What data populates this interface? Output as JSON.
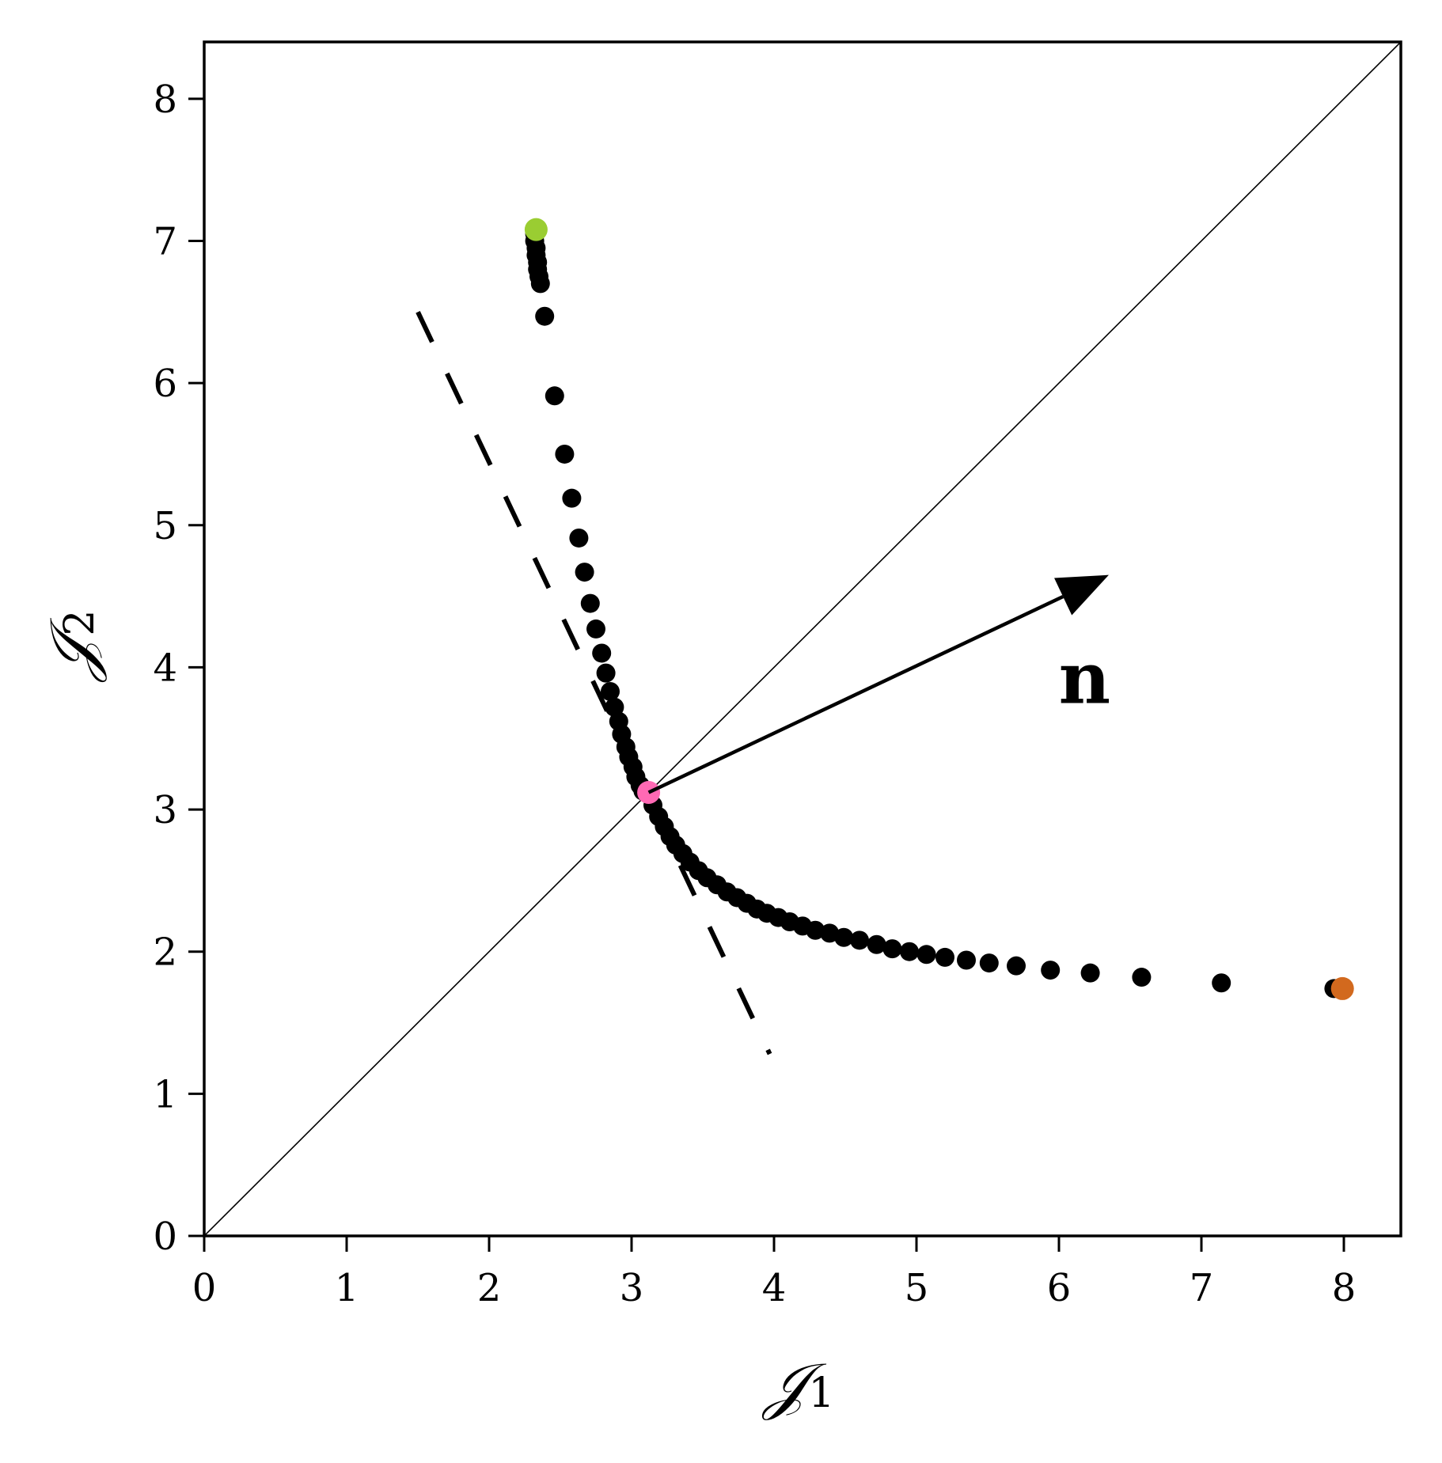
{
  "chart_data": {
    "type": "scatter",
    "title": "",
    "xlabel": {
      "main": "𝒥",
      "sub": "1"
    },
    "ylabel": {
      "main": "𝒥",
      "sub": "2"
    },
    "xlim": [
      0,
      8.4
    ],
    "ylim": [
      0,
      8.4
    ],
    "xticks": [
      "0",
      "1",
      "2",
      "3",
      "4",
      "5",
      "6",
      "7",
      "8"
    ],
    "yticks": [
      "0",
      "1",
      "2",
      "3",
      "4",
      "5",
      "6",
      "7",
      "8"
    ],
    "grid": false,
    "identity_line": {
      "from": [
        0,
        0
      ],
      "to": [
        8.4,
        8.4
      ]
    },
    "tangent_line": {
      "from": [
        1.5,
        6.5
      ],
      "to": [
        3.97,
        1.28
      ],
      "style": "dashed"
    },
    "normal_vector": {
      "from": [
        3.12,
        3.12
      ],
      "to": [
        6.35,
        4.65
      ],
      "label": "n"
    },
    "series": [
      {
        "color": "#000000",
        "points": [
          [
            2.32,
            7.05
          ],
          [
            2.32,
            7.0
          ],
          [
            2.33,
            6.95
          ],
          [
            2.33,
            6.9
          ],
          [
            2.34,
            6.85
          ],
          [
            2.34,
            6.8
          ],
          [
            2.35,
            6.75
          ],
          [
            2.36,
            6.7
          ],
          [
            2.39,
            6.47
          ],
          [
            2.46,
            5.91
          ],
          [
            2.53,
            5.5
          ],
          [
            2.58,
            5.19
          ],
          [
            2.63,
            4.91
          ],
          [
            2.67,
            4.67
          ],
          [
            2.71,
            4.45
          ],
          [
            2.75,
            4.27
          ],
          [
            2.79,
            4.1
          ],
          [
            2.82,
            3.96
          ],
          [
            2.85,
            3.83
          ],
          [
            2.88,
            3.72
          ],
          [
            2.91,
            3.62
          ],
          [
            2.93,
            3.53
          ],
          [
            2.96,
            3.44
          ],
          [
            2.98,
            3.37
          ],
          [
            3.01,
            3.3
          ],
          [
            3.03,
            3.23
          ],
          [
            3.06,
            3.17
          ],
          [
            3.08,
            3.13
          ],
          [
            3.15,
            3.03
          ],
          [
            3.19,
            2.95
          ],
          [
            3.23,
            2.88
          ],
          [
            3.27,
            2.81
          ],
          [
            3.31,
            2.75
          ],
          [
            3.36,
            2.69
          ],
          [
            3.41,
            2.63
          ],
          [
            3.47,
            2.57
          ],
          [
            3.53,
            2.52
          ],
          [
            3.6,
            2.47
          ],
          [
            3.67,
            2.42
          ],
          [
            3.74,
            2.38
          ],
          [
            3.81,
            2.34
          ],
          [
            3.88,
            2.3
          ],
          [
            3.95,
            2.27
          ],
          [
            4.03,
            2.24
          ],
          [
            4.11,
            2.21
          ],
          [
            4.2,
            2.18
          ],
          [
            4.29,
            2.15
          ],
          [
            4.39,
            2.13
          ],
          [
            4.49,
            2.1
          ],
          [
            4.6,
            2.08
          ],
          [
            4.72,
            2.05
          ],
          [
            4.83,
            2.02
          ],
          [
            4.95,
            2.0
          ],
          [
            5.07,
            1.98
          ],
          [
            5.2,
            1.96
          ],
          [
            5.35,
            1.94
          ],
          [
            5.51,
            1.92
          ],
          [
            5.7,
            1.9
          ],
          [
            5.94,
            1.87
          ],
          [
            6.22,
            1.85
          ],
          [
            6.58,
            1.82
          ],
          [
            7.14,
            1.78
          ],
          [
            7.93,
            1.74
          ]
        ]
      }
    ],
    "highlights": [
      {
        "x": 2.33,
        "y": 7.08,
        "color": "#9ACD32"
      },
      {
        "x": 3.12,
        "y": 3.12,
        "color": "#FF69B4"
      },
      {
        "x": 7.99,
        "y": 1.74,
        "color": "#D2691E"
      }
    ]
  }
}
